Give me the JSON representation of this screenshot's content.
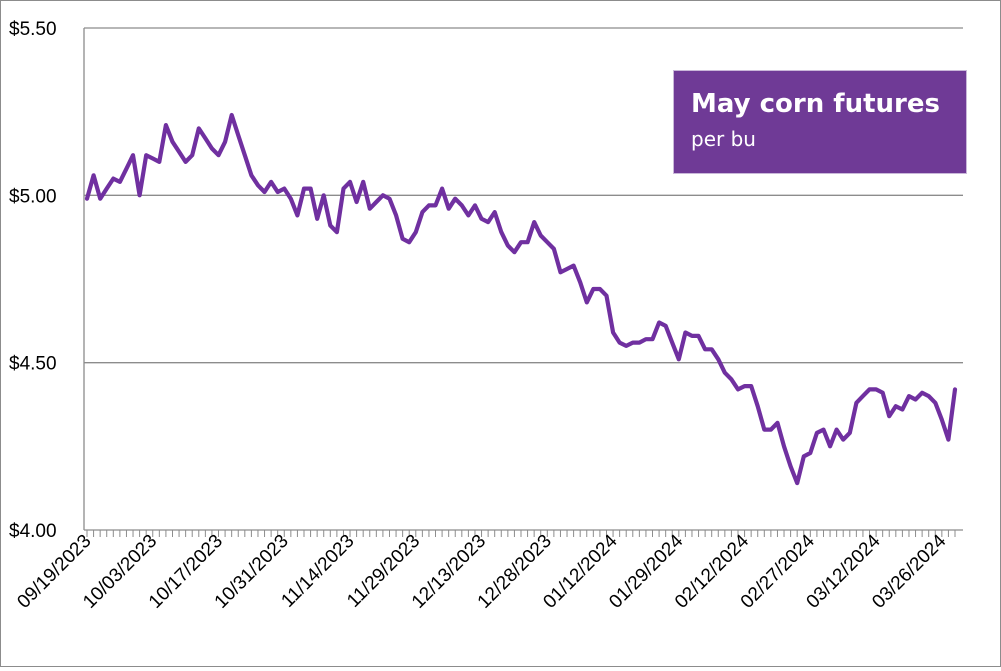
{
  "chart_data": {
    "type": "line",
    "title": "May corn futures",
    "subtitle": "per bu",
    "xlabel": "",
    "ylabel": "",
    "ylim": [
      4.0,
      5.5
    ],
    "y_ticks": [
      "$4.00",
      "$4.50",
      "$5.00",
      "$5.50"
    ],
    "y_tick_values": [
      4.0,
      4.5,
      5.0,
      5.5
    ],
    "x_ticks": [
      "09/19/2023",
      "10/03/2023",
      "10/17/2023",
      "10/31/2023",
      "11/14/2023",
      "11/29/2023",
      "12/13/2023",
      "12/28/2023",
      "01/12/2024",
      "01/29/2024",
      "02/12/2024",
      "02/27/2024",
      "03/12/2024",
      "03/26/2024"
    ],
    "x_tick_indices": [
      0,
      10,
      20,
      30,
      40,
      50,
      60,
      70,
      80,
      90,
      100,
      110,
      120,
      130
    ],
    "grid": true,
    "legend_placement": "top-right",
    "line_color": "#7030a0",
    "legend_color": "#6f3a96",
    "series": [
      {
        "values": [
          4.99,
          5.06,
          4.99,
          5.02,
          5.05,
          5.04,
          5.08,
          5.12,
          5.0,
          5.12,
          5.11,
          5.1,
          5.21,
          5.16,
          5.13,
          5.1,
          5.12,
          5.2,
          5.17,
          5.14,
          5.12,
          5.16,
          5.24,
          5.18,
          5.12,
          5.06,
          5.03,
          5.01,
          5.04,
          5.01,
          5.02,
          4.99,
          4.94,
          5.02,
          5.02,
          4.93,
          5.0,
          4.91,
          4.89,
          5.02,
          5.04,
          4.98,
          5.04,
          4.96,
          4.98,
          5.0,
          4.99,
          4.94,
          4.87,
          4.86,
          4.89,
          4.95,
          4.97,
          4.97,
          5.02,
          4.96,
          4.99,
          4.97,
          4.94,
          4.97,
          4.93,
          4.92,
          4.95,
          4.89,
          4.85,
          4.83,
          4.86,
          4.86,
          4.92,
          4.88,
          4.86,
          4.84,
          4.77,
          4.78,
          4.79,
          4.74,
          4.68,
          4.72,
          4.72,
          4.7,
          4.59,
          4.56,
          4.55,
          4.56,
          4.56,
          4.57,
          4.57,
          4.62,
          4.61,
          4.56,
          4.51,
          4.59,
          4.58,
          4.58,
          4.54,
          4.54,
          4.51,
          4.47,
          4.45,
          4.42,
          4.43,
          4.43,
          4.37,
          4.3,
          4.3,
          4.32,
          4.25,
          4.19,
          4.14,
          4.22,
          4.23,
          4.29,
          4.3,
          4.25,
          4.3,
          4.27,
          4.29,
          4.38,
          4.4,
          4.42,
          4.42,
          4.41,
          4.34,
          4.37,
          4.36,
          4.4,
          4.39,
          4.41,
          4.4,
          4.38,
          4.33,
          4.27,
          4.42
        ]
      }
    ]
  }
}
